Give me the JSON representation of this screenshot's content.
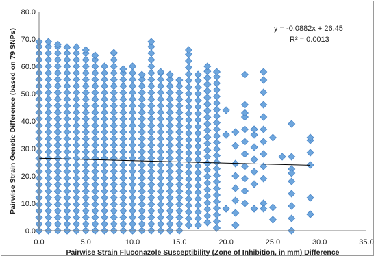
{
  "chart_data": {
    "type": "scatter",
    "title": "",
    "xlabel": "Pairwise Strain Fluconazole Susceptibility (Zone of Inhibition, in mm) Difference",
    "ylabel": "Pairwise Strain Genetic Difference (based on 79 SNPs)",
    "xlim": [
      0,
      35
    ],
    "ylim": [
      0,
      80
    ],
    "x_ticks": [
      "0.0",
      "5.0",
      "10.0",
      "15.0",
      "20.0",
      "25.0",
      "30.0",
      "35.0"
    ],
    "y_ticks": [
      "0.0",
      "10.0",
      "20.0",
      "30.0",
      "40.0",
      "50.0",
      "60.0",
      "70.0",
      "80.0"
    ],
    "grid": false,
    "legend": "none",
    "marker_color": "#6ea6dd",
    "marker_edge_color": "#4a86c8",
    "trendline": {
      "equation": "y = -0.0882x + 26.45",
      "r_squared": "R² = 0.0013",
      "slope": -0.0882,
      "intercept": 26.45,
      "x_range": [
        0,
        29
      ]
    },
    "columns": [
      {
        "x": 0,
        "ymin": 0,
        "ymax": 69
      },
      {
        "x": 1,
        "ymin": 0,
        "ymax": 69
      },
      {
        "x": 2,
        "ymin": 0,
        "ymax": 68
      },
      {
        "x": 3,
        "ymin": 0,
        "ymax": 67
      },
      {
        "x": 4,
        "ymin": 0,
        "ymax": 67
      },
      {
        "x": 5,
        "ymin": 0,
        "ymax": 66
      },
      {
        "x": 6,
        "ymin": 0,
        "ymax": 64
      },
      {
        "x": 7,
        "ymin": 0,
        "ymax": 60
      },
      {
        "x": 8,
        "ymin": 0,
        "ymax": 65
      },
      {
        "x": 9,
        "ymin": 0,
        "ymax": 59
      },
      {
        "x": 10,
        "ymin": 0,
        "ymax": 60
      },
      {
        "x": 11,
        "ymin": 0,
        "ymax": 57
      },
      {
        "x": 12,
        "ymin": 0,
        "ymax": 69
      },
      {
        "x": 13,
        "ymin": 0,
        "ymax": 58
      },
      {
        "x": 14,
        "ymin": 0,
        "ymax": 57
      },
      {
        "x": 15,
        "ymin": 0,
        "ymax": 55
      },
      {
        "x": 16,
        "ymin": 2,
        "ymax": 66
      },
      {
        "x": 17,
        "ymin": 2,
        "ymax": 57
      },
      {
        "x": 18,
        "ymin": 3,
        "ymax": 60
      },
      {
        "x": 19,
        "ymin": 1,
        "ymax": 58
      },
      {
        "x": 20,
        "ymin": 8,
        "ymax": 35
      },
      {
        "x": 21,
        "ymin": 2,
        "ymax": 36
      },
      {
        "x": 22,
        "ymin": 10,
        "ymax": 57
      },
      {
        "x": 23,
        "ymin": 8,
        "ymax": 37
      },
      {
        "x": 24,
        "ymin": 10,
        "ymax": 58
      },
      {
        "x": 25,
        "ymin": 4,
        "ymax": 34
      },
      {
        "x": 27,
        "ymin": 0,
        "ymax": 39
      },
      {
        "x": 29,
        "ymin": 6,
        "ymax": 34
      }
    ],
    "outliers": [
      {
        "x": 20,
        "y": 44
      },
      {
        "x": 22,
        "y": 43
      },
      {
        "x": 23,
        "y": 37
      },
      {
        "x": 21,
        "y": 31
      },
      {
        "x": 27,
        "y": 21
      },
      {
        "x": 26,
        "y": 27
      },
      {
        "x": 29,
        "y": 12
      },
      {
        "x": 24,
        "y": 8
      }
    ]
  }
}
